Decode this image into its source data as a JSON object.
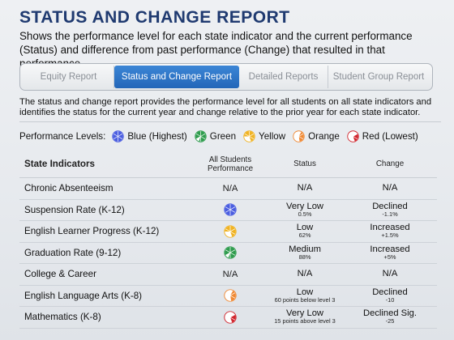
{
  "header": {
    "title": "STATUS AND CHANGE REPORT",
    "subtitle": "Shows the performance level for each state indicator and the current performance (Status) and difference from past performance (Change) that resulted in that performance."
  },
  "tabs": [
    {
      "label": "Equity Report",
      "active": false
    },
    {
      "label": "Status and Change Report",
      "active": true
    },
    {
      "label": "Detailed Reports",
      "active": false
    },
    {
      "label": "Student Group Report",
      "active": false
    }
  ],
  "description": "The status and change report provides the performance level for all students on all state indicators and identifies the status for the current year and change relative to the prior year for each state indicator.",
  "legend": {
    "label": "Performance Levels:",
    "items": [
      {
        "label": "Blue (Highest)",
        "level": "blue"
      },
      {
        "label": "Green",
        "level": "green"
      },
      {
        "label": "Yellow",
        "level": "yellow"
      },
      {
        "label": "Orange",
        "level": "orange"
      },
      {
        "label": "Red (Lowest)",
        "level": "red"
      }
    ]
  },
  "colors": {
    "blue": "#4a5de0",
    "green": "#2e9c4d",
    "yellow": "#f0b323",
    "orange": "#f08a35",
    "red": "#d1262e",
    "accent": "#2a6fc4",
    "title": "#1f3a70"
  },
  "table": {
    "headers": {
      "indicator": "State Indicators",
      "performance": "All Students Performance",
      "status": "Status",
      "change": "Change"
    },
    "rows": [
      {
        "indicator": "Chronic Absenteeism",
        "performance_text": "N/A",
        "performance_level": null,
        "status": "N/A",
        "status_detail": "",
        "change": "N/A",
        "change_detail": ""
      },
      {
        "indicator": "Suspension Rate (K-12)",
        "performance_text": "",
        "performance_level": "blue",
        "status": "Very Low",
        "status_detail": "0.5%",
        "change": "Declined",
        "change_detail": "-1.1%"
      },
      {
        "indicator": "English Learner Progress (K-12)",
        "performance_text": "",
        "performance_level": "yellow",
        "status": "Low",
        "status_detail": "62%",
        "change": "Increased",
        "change_detail": "+1.5%"
      },
      {
        "indicator": "Graduation Rate (9-12)",
        "performance_text": "",
        "performance_level": "green",
        "status": "Medium",
        "status_detail": "88%",
        "change": "Increased",
        "change_detail": "+5%"
      },
      {
        "indicator": "College & Career",
        "performance_text": "N/A",
        "performance_level": null,
        "status": "N/A",
        "status_detail": "",
        "change": "N/A",
        "change_detail": ""
      },
      {
        "indicator": "English Language Arts (K-8)",
        "performance_text": "",
        "performance_level": "orange",
        "status": "Low",
        "status_detail": "60 points below level 3",
        "change": "Declined",
        "change_detail": "-10"
      },
      {
        "indicator": "Mathematics (K-8)",
        "performance_text": "",
        "performance_level": "red",
        "status": "Very Low",
        "status_detail": "15 points above level 3",
        "change": "Declined Sig.",
        "change_detail": "-25"
      }
    ]
  }
}
